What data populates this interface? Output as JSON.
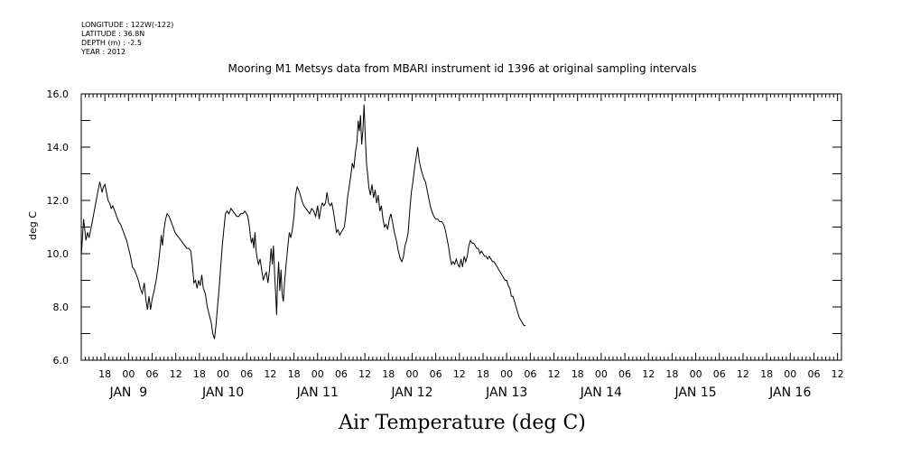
{
  "header": {
    "meta_lines": [
      "LONGITUDE : 122W(-122)",
      "LATITUDE : 36.8N",
      "DEPTH (m) : -2.5",
      "YEAR : 2012"
    ]
  },
  "chart_data": {
    "type": "line",
    "title": "Mooring M1 Metsys data from MBARI instrument id 1396 at original sampling intervals",
    "xlabel": "Air Temperature (deg C)",
    "ylabel": "deg C",
    "ylim": [
      6.0,
      16.0
    ],
    "yticks": [
      "6.0",
      "8.0",
      "10.0",
      "12.0",
      "14.0",
      "16.0"
    ],
    "x_units": "hours of Jan 2012",
    "xlim": [
      180,
      373
    ],
    "hour_labels": [
      {
        "h": 186,
        "label": "18"
      },
      {
        "h": 192,
        "label": "00"
      },
      {
        "h": 198,
        "label": "06"
      },
      {
        "h": 204,
        "label": "12"
      },
      {
        "h": 210,
        "label": "18"
      },
      {
        "h": 216,
        "label": "00"
      },
      {
        "h": 222,
        "label": "06"
      },
      {
        "h": 228,
        "label": "12"
      },
      {
        "h": 234,
        "label": "18"
      },
      {
        "h": 240,
        "label": "00"
      },
      {
        "h": 246,
        "label": "06"
      },
      {
        "h": 252,
        "label": "12"
      },
      {
        "h": 258,
        "label": "18"
      },
      {
        "h": 264,
        "label": "00"
      },
      {
        "h": 270,
        "label": "06"
      },
      {
        "h": 276,
        "label": "12"
      },
      {
        "h": 282,
        "label": "18"
      },
      {
        "h": 288,
        "label": "00"
      },
      {
        "h": 294,
        "label": "06"
      },
      {
        "h": 300,
        "label": "12"
      },
      {
        "h": 306,
        "label": "18"
      },
      {
        "h": 312,
        "label": "00"
      },
      {
        "h": 318,
        "label": "06"
      },
      {
        "h": 324,
        "label": "12"
      },
      {
        "h": 330,
        "label": "18"
      },
      {
        "h": 336,
        "label": "00"
      },
      {
        "h": 342,
        "label": "06"
      },
      {
        "h": 348,
        "label": "12"
      },
      {
        "h": 354,
        "label": "18"
      },
      {
        "h": 360,
        "label": "00"
      },
      {
        "h": 366,
        "label": "06"
      },
      {
        "h": 372,
        "label": "12"
      }
    ],
    "date_labels": [
      {
        "h": 192,
        "label": "JAN  9"
      },
      {
        "h": 216,
        "label": "JAN 10"
      },
      {
        "h": 240,
        "label": "JAN 11"
      },
      {
        "h": 264,
        "label": "JAN 12"
      },
      {
        "h": 288,
        "label": "JAN 13"
      },
      {
        "h": 312,
        "label": "JAN 14"
      },
      {
        "h": 336,
        "label": "JAN 15"
      },
      {
        "h": 360,
        "label": "JAN 16"
      }
    ],
    "series": [
      {
        "values": [
          [
            180.0,
            9.9
          ],
          [
            180.3,
            10.6
          ],
          [
            180.6,
            11.3
          ],
          [
            180.9,
            10.9
          ],
          [
            181.2,
            10.5
          ],
          [
            181.6,
            10.8
          ],
          [
            182.0,
            10.6
          ],
          [
            182.4,
            10.9
          ],
          [
            182.8,
            11.2
          ],
          [
            183.3,
            11.6
          ],
          [
            183.8,
            12.0
          ],
          [
            184.3,
            12.4
          ],
          [
            184.7,
            12.7
          ],
          [
            185.0,
            12.5
          ],
          [
            185.3,
            12.3
          ],
          [
            185.6,
            12.5
          ],
          [
            186.0,
            12.6
          ],
          [
            186.4,
            12.3
          ],
          [
            186.8,
            12.0
          ],
          [
            187.2,
            11.9
          ],
          [
            187.6,
            11.7
          ],
          [
            188.0,
            11.8
          ],
          [
            188.5,
            11.6
          ],
          [
            189.0,
            11.4
          ],
          [
            189.5,
            11.2
          ],
          [
            190.0,
            11.1
          ],
          [
            190.5,
            10.9
          ],
          [
            191.0,
            10.7
          ],
          [
            191.5,
            10.5
          ],
          [
            192.0,
            10.2
          ],
          [
            192.5,
            9.9
          ],
          [
            193.0,
            9.5
          ],
          [
            193.5,
            9.4
          ],
          [
            194.0,
            9.2
          ],
          [
            194.5,
            9.0
          ],
          [
            195.0,
            8.7
          ],
          [
            195.5,
            8.5
          ],
          [
            196.0,
            8.9
          ],
          [
            196.4,
            8.3
          ],
          [
            196.8,
            7.9
          ],
          [
            197.2,
            8.4
          ],
          [
            197.6,
            7.9
          ],
          [
            198.0,
            8.3
          ],
          [
            198.5,
            8.6
          ],
          [
            199.0,
            9.0
          ],
          [
            199.5,
            9.5
          ],
          [
            200.0,
            10.2
          ],
          [
            200.3,
            10.7
          ],
          [
            200.6,
            10.3
          ],
          [
            201.0,
            10.9
          ],
          [
            201.4,
            11.3
          ],
          [
            201.8,
            11.5
          ],
          [
            202.3,
            11.4
          ],
          [
            202.8,
            11.2
          ],
          [
            203.3,
            11.0
          ],
          [
            203.8,
            10.8
          ],
          [
            204.3,
            10.7
          ],
          [
            204.8,
            10.6
          ],
          [
            205.3,
            10.5
          ],
          [
            205.8,
            10.4
          ],
          [
            206.3,
            10.3
          ],
          [
            206.8,
            10.2
          ],
          [
            207.3,
            10.2
          ],
          [
            207.8,
            10.1
          ],
          [
            208.2,
            9.6
          ],
          [
            208.6,
            8.9
          ],
          [
            209.0,
            9.0
          ],
          [
            209.4,
            8.7
          ],
          [
            209.8,
            9.0
          ],
          [
            210.2,
            8.8
          ],
          [
            210.6,
            9.2
          ],
          [
            211.0,
            8.7
          ],
          [
            211.5,
            8.5
          ],
          [
            212.0,
            8.0
          ],
          [
            212.5,
            7.7
          ],
          [
            213.0,
            7.4
          ],
          [
            213.4,
            7.0
          ],
          [
            213.8,
            6.8
          ],
          [
            214.2,
            7.3
          ],
          [
            214.6,
            8.0
          ],
          [
            215.0,
            8.7
          ],
          [
            215.4,
            9.5
          ],
          [
            215.8,
            10.3
          ],
          [
            216.2,
            10.9
          ],
          [
            216.6,
            11.5
          ],
          [
            217.0,
            11.6
          ],
          [
            217.5,
            11.5
          ],
          [
            218.0,
            11.7
          ],
          [
            218.5,
            11.6
          ],
          [
            219.0,
            11.5
          ],
          [
            219.5,
            11.4
          ],
          [
            220.0,
            11.4
          ],
          [
            220.5,
            11.5
          ],
          [
            221.0,
            11.5
          ],
          [
            221.5,
            11.6
          ],
          [
            222.0,
            11.5
          ],
          [
            222.3,
            11.4
          ],
          [
            222.6,
            11.1
          ],
          [
            222.9,
            10.7
          ],
          [
            223.2,
            10.4
          ],
          [
            223.5,
            10.6
          ],
          [
            223.8,
            10.2
          ],
          [
            224.1,
            10.8
          ],
          [
            224.4,
            10.1
          ],
          [
            224.7,
            9.8
          ],
          [
            225.0,
            9.6
          ],
          [
            225.4,
            9.8
          ],
          [
            225.8,
            9.4
          ],
          [
            226.2,
            9.0
          ],
          [
            226.6,
            9.2
          ],
          [
            227.0,
            9.3
          ],
          [
            227.4,
            8.9
          ],
          [
            227.8,
            9.4
          ],
          [
            228.2,
            10.2
          ],
          [
            228.5,
            9.6
          ],
          [
            228.8,
            10.3
          ],
          [
            229.1,
            9.2
          ],
          [
            229.4,
            8.4
          ],
          [
            229.6,
            7.7
          ],
          [
            229.8,
            8.8
          ],
          [
            230.1,
            9.7
          ],
          [
            230.4,
            8.6
          ],
          [
            230.7,
            9.4
          ],
          [
            231.0,
            8.5
          ],
          [
            231.3,
            8.2
          ],
          [
            231.6,
            8.9
          ],
          [
            232.0,
            9.6
          ],
          [
            232.4,
            10.2
          ],
          [
            232.8,
            10.8
          ],
          [
            233.2,
            10.6
          ],
          [
            233.6,
            10.9
          ],
          [
            234.0,
            11.4
          ],
          [
            234.4,
            12.2
          ],
          [
            234.8,
            12.5
          ],
          [
            235.2,
            12.4
          ],
          [
            235.6,
            12.2
          ],
          [
            236.0,
            12.0
          ],
          [
            236.5,
            11.8
          ],
          [
            237.0,
            11.7
          ],
          [
            237.5,
            11.6
          ],
          [
            238.0,
            11.5
          ],
          [
            238.5,
            11.7
          ],
          [
            239.0,
            11.6
          ],
          [
            239.5,
            11.4
          ],
          [
            240.0,
            11.8
          ],
          [
            240.4,
            11.3
          ],
          [
            240.8,
            11.7
          ],
          [
            241.2,
            11.9
          ],
          [
            241.6,
            11.8
          ],
          [
            242.0,
            11.9
          ],
          [
            242.4,
            12.3
          ],
          [
            242.8,
            11.9
          ],
          [
            243.2,
            11.8
          ],
          [
            243.6,
            11.9
          ],
          [
            244.0,
            11.6
          ],
          [
            244.4,
            11.2
          ],
          [
            244.8,
            10.8
          ],
          [
            245.2,
            10.9
          ],
          [
            245.6,
            10.7
          ],
          [
            246.0,
            10.8
          ],
          [
            246.4,
            10.9
          ],
          [
            246.8,
            11.0
          ],
          [
            247.2,
            11.5
          ],
          [
            247.6,
            12.1
          ],
          [
            248.0,
            12.5
          ],
          [
            248.4,
            12.9
          ],
          [
            248.8,
            13.4
          ],
          [
            249.2,
            13.2
          ],
          [
            249.6,
            13.8
          ],
          [
            250.0,
            14.2
          ],
          [
            250.3,
            15.0
          ],
          [
            250.6,
            14.6
          ],
          [
            250.9,
            15.2
          ],
          [
            251.2,
            14.1
          ],
          [
            251.5,
            14.6
          ],
          [
            251.8,
            15.6
          ],
          [
            252.1,
            14.4
          ],
          [
            252.4,
            13.4
          ],
          [
            252.7,
            13.0
          ],
          [
            253.0,
            12.5
          ],
          [
            253.4,
            12.2
          ],
          [
            253.8,
            12.6
          ],
          [
            254.2,
            12.1
          ],
          [
            254.6,
            12.4
          ],
          [
            255.0,
            11.9
          ],
          [
            255.4,
            12.2
          ],
          [
            255.8,
            11.6
          ],
          [
            256.2,
            11.8
          ],
          [
            256.6,
            11.3
          ],
          [
            257.0,
            11.0
          ],
          [
            257.4,
            11.1
          ],
          [
            257.8,
            10.9
          ],
          [
            258.2,
            11.3
          ],
          [
            258.6,
            11.5
          ],
          [
            259.0,
            11.2
          ],
          [
            259.5,
            10.8
          ],
          [
            260.0,
            10.5
          ],
          [
            260.5,
            10.1
          ],
          [
            261.0,
            9.8
          ],
          [
            261.4,
            9.7
          ],
          [
            261.8,
            9.9
          ],
          [
            262.2,
            10.3
          ],
          [
            262.6,
            10.5
          ],
          [
            263.0,
            10.8
          ],
          [
            263.4,
            11.6
          ],
          [
            263.8,
            12.3
          ],
          [
            264.2,
            12.7
          ],
          [
            264.6,
            13.2
          ],
          [
            265.0,
            13.6
          ],
          [
            265.4,
            14.0
          ],
          [
            265.8,
            13.5
          ],
          [
            266.2,
            13.2
          ],
          [
            266.6,
            13.0
          ],
          [
            267.0,
            12.8
          ],
          [
            267.4,
            12.7
          ],
          [
            267.8,
            12.4
          ],
          [
            268.2,
            12.1
          ],
          [
            268.6,
            11.8
          ],
          [
            269.0,
            11.6
          ],
          [
            269.5,
            11.4
          ],
          [
            270.0,
            11.3
          ],
          [
            270.5,
            11.3
          ],
          [
            271.0,
            11.2
          ],
          [
            271.5,
            11.2
          ],
          [
            272.0,
            11.1
          ],
          [
            272.4,
            10.9
          ],
          [
            272.8,
            10.6
          ],
          [
            273.2,
            10.3
          ],
          [
            273.6,
            9.9
          ],
          [
            274.0,
            9.6
          ],
          [
            274.4,
            9.7
          ],
          [
            274.8,
            9.6
          ],
          [
            275.2,
            9.8
          ],
          [
            275.6,
            9.6
          ],
          [
            276.0,
            9.5
          ],
          [
            276.4,
            9.8
          ],
          [
            276.8,
            9.5
          ],
          [
            277.2,
            9.9
          ],
          [
            277.6,
            9.7
          ],
          [
            278.0,
            9.9
          ],
          [
            278.4,
            10.3
          ],
          [
            278.8,
            10.5
          ],
          [
            279.2,
            10.4
          ],
          [
            279.6,
            10.4
          ],
          [
            280.0,
            10.3
          ],
          [
            280.4,
            10.2
          ],
          [
            280.8,
            10.2
          ],
          [
            281.2,
            10.0
          ],
          [
            281.6,
            10.1
          ],
          [
            282.0,
            10.0
          ],
          [
            282.4,
            9.9
          ],
          [
            282.8,
            9.9
          ],
          [
            283.2,
            9.8
          ],
          [
            283.6,
            9.9
          ],
          [
            284.0,
            9.8
          ],
          [
            284.4,
            9.7
          ],
          [
            284.8,
            9.7
          ],
          [
            285.2,
            9.6
          ],
          [
            285.6,
            9.5
          ],
          [
            286.0,
            9.4
          ],
          [
            286.4,
            9.3
          ],
          [
            286.8,
            9.2
          ],
          [
            287.2,
            9.1
          ],
          [
            287.6,
            9.0
          ],
          [
            288.0,
            9.0
          ],
          [
            288.4,
            8.8
          ],
          [
            288.8,
            8.7
          ],
          [
            289.2,
            8.4
          ],
          [
            289.6,
            8.4
          ],
          [
            290.0,
            8.2
          ],
          [
            290.4,
            8.0
          ],
          [
            290.8,
            7.8
          ],
          [
            291.2,
            7.6
          ],
          [
            291.6,
            7.5
          ],
          [
            292.0,
            7.4
          ],
          [
            292.4,
            7.3
          ],
          [
            292.8,
            7.3
          ]
        ]
      }
    ]
  }
}
